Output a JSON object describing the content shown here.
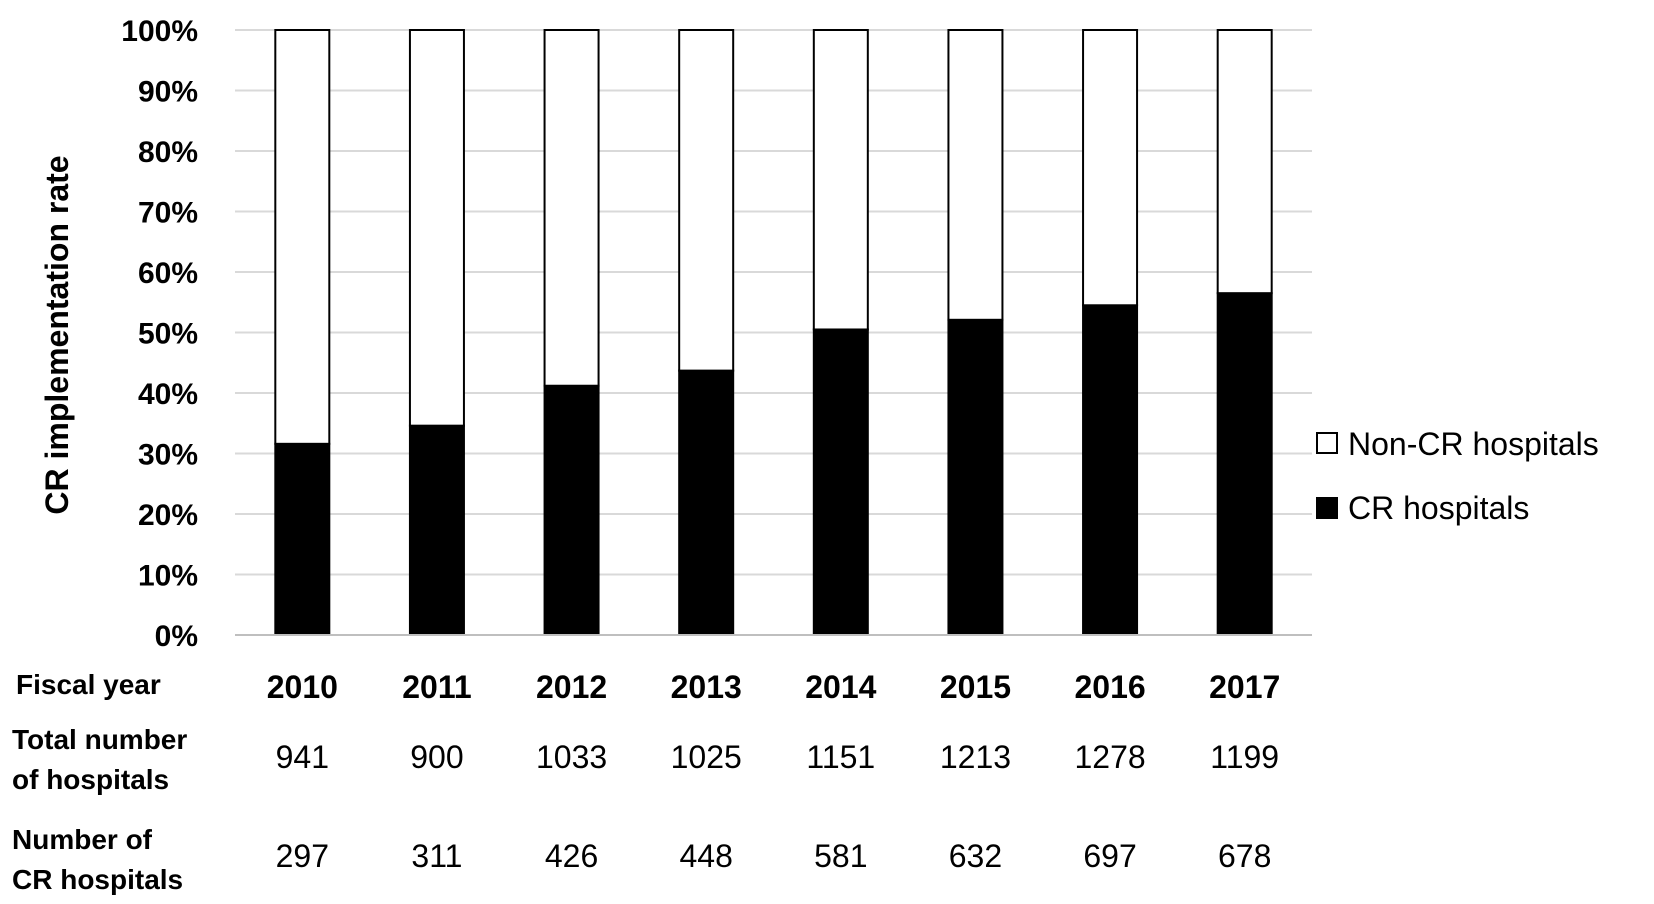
{
  "chart_data": {
    "type": "bar",
    "stacked": true,
    "ylabel": "CR implementation rate",
    "ylim": [
      0,
      100
    ],
    "y_ticks": [
      "0%",
      "10%",
      "20%",
      "30%",
      "40%",
      "50%",
      "60%",
      "70%",
      "80%",
      "90%",
      "100%"
    ],
    "grid": true,
    "legend_position": "right",
    "categories": [
      "2010",
      "2011",
      "2012",
      "2013",
      "2014",
      "2015",
      "2016",
      "2017"
    ],
    "series": [
      {
        "name": "CR hospitals",
        "color": "#000000",
        "values": [
          31.6,
          34.6,
          41.2,
          43.7,
          50.5,
          52.1,
          54.5,
          56.5
        ]
      },
      {
        "name": "Non-CR hospitals",
        "color": "#ffffff",
        "values": [
          68.4,
          65.4,
          58.8,
          56.3,
          49.5,
          47.9,
          45.5,
          43.5
        ]
      }
    ],
    "table": {
      "fiscal_year_label": "Fiscal year",
      "rows": [
        {
          "label_line1": "Total number",
          "label_line2": "of hospitals",
          "values": [
            "941",
            "900",
            "1033",
            "1025",
            "1151",
            "1213",
            "1278",
            "1199"
          ]
        },
        {
          "label_line1": "Number of",
          "label_line2": "CR hospitals",
          "values": [
            "297",
            "311",
            "426",
            "448",
            "581",
            "632",
            "697",
            "678"
          ]
        }
      ]
    }
  }
}
